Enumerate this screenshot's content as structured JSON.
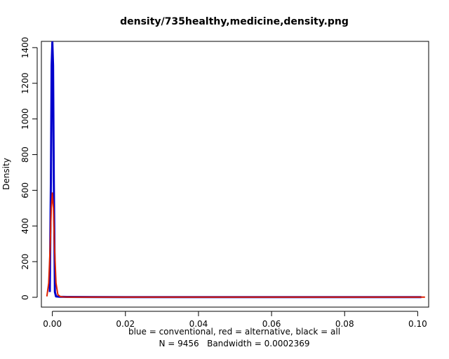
{
  "chart_data": {
    "type": "line",
    "title": "density/735healthy,medicine,density.png",
    "xlabel": "blue = conventional, red = alternative, black = all",
    "sublabel": "N = 9456   Bandwidth = 0.0002369",
    "ylabel": "Density",
    "xlim": [
      -0.003,
      0.103
    ],
    "ylim": [
      -55,
      1435
    ],
    "x_ticks": [
      0.0,
      0.02,
      0.04,
      0.06,
      0.08,
      0.1
    ],
    "x_tick_labels": [
      "0.00",
      "0.02",
      "0.04",
      "0.06",
      "0.08",
      "0.10"
    ],
    "y_ticks": [
      0,
      200,
      400,
      600,
      800,
      1000,
      1200,
      1400
    ],
    "y_tick_labels": [
      "0",
      "200",
      "400",
      "600",
      "800",
      "1000",
      "1200",
      "1400"
    ],
    "grid": false,
    "legend": "none",
    "series": [
      {
        "color": "#000000",
        "x": [
          -0.0007,
          -0.0004,
          -0.0002,
          0.0,
          0.0002,
          0.0004,
          0.0007,
          0.001,
          0.002,
          0.004,
          0.02,
          0.05,
          0.08,
          0.1,
          0.101
        ],
        "y": [
          30,
          650,
          1300,
          1430,
          1300,
          650,
          30,
          5,
          3,
          2,
          1,
          1,
          1,
          1,
          1
        ]
      },
      {
        "color": "#0000cc",
        "x": [
          -0.0007,
          -0.0004,
          -0.0002,
          0.0,
          0.0002,
          0.0004,
          0.0007,
          0.001,
          0.002,
          0.004,
          0.02,
          0.05,
          0.08,
          0.1,
          0.101
        ],
        "y": [
          30,
          650,
          1300,
          1430,
          1300,
          650,
          30,
          5,
          3,
          2,
          1,
          1,
          1,
          1,
          1
        ]
      },
      {
        "color": "#dd2200",
        "x": [
          -0.0015,
          -0.001,
          -0.0006,
          -0.0003,
          0.0,
          0.0003,
          0.0006,
          0.001,
          0.0015,
          0.0022,
          0.003,
          0.005,
          0.02,
          0.05,
          0.08,
          0.1,
          0.102
        ],
        "y": [
          5,
          80,
          280,
          500,
          585,
          500,
          280,
          80,
          15,
          4,
          2,
          1,
          1,
          1,
          1,
          1,
          1
        ]
      }
    ]
  }
}
